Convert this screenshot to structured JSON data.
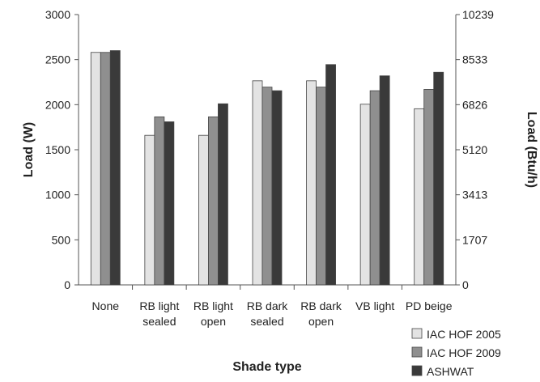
{
  "chart_data": {
    "type": "bar",
    "title": "",
    "xlabel": "Shade type",
    "ylabel": "Load (W)",
    "y2label": "Load (Btu/h)",
    "ylim": [
      0,
      3000
    ],
    "yticks": [
      0,
      500,
      1000,
      1500,
      2000,
      2500,
      3000
    ],
    "y2ticks": [
      "0",
      "1707",
      "3413",
      "5120",
      "6826",
      "8533",
      "10239"
    ],
    "grid": false,
    "legend_position": "bottom-right",
    "categories": [
      [
        "None"
      ],
      [
        "RB light",
        "sealed"
      ],
      [
        "RB light",
        "open"
      ],
      [
        "RB dark",
        "sealed"
      ],
      [
        "RB dark",
        "open"
      ],
      [
        "VB light"
      ],
      [
        "PD beige"
      ]
    ],
    "series": [
      {
        "name": "IAC HOF 2005",
        "color": "#e3e3e3",
        "values": [
          2580,
          1660,
          1660,
          2265,
          2265,
          2005,
          1955
        ]
      },
      {
        "name": "IAC HOF 2009",
        "color": "#8f8f8f",
        "values": [
          2580,
          1865,
          1865,
          2195,
          2195,
          2155,
          2170
        ]
      },
      {
        "name": "ASHWAT",
        "color": "#3a3a3a",
        "values": [
          2600,
          1810,
          2010,
          2155,
          2445,
          2320,
          2360
        ]
      }
    ]
  }
}
